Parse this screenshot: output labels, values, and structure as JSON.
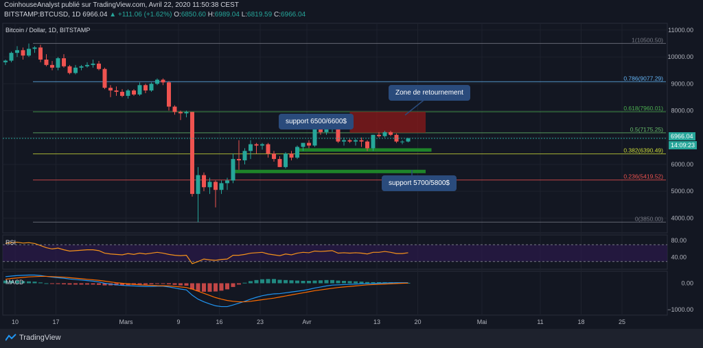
{
  "header": {
    "publisher_line": "CoinhouseAnalyst publié sur TradingView.com, Avril 22, 2020 11:50:38 CEST",
    "symbol": "BITSTAMP:BTCUSD, 1D",
    "last": "6966.04",
    "change": "▲ +111.06 (+1.62%)",
    "o_label": "O:",
    "o": "6850.60",
    "h_label": "H:",
    "h": "6989.04",
    "l_label": "L:",
    "l": "6819.59",
    "c_label": "C:",
    "c": "6966.04"
  },
  "chart_title": "Bitcoin / Dollar, 1D, BITSTAMP",
  "footer": {
    "brand": "TradingView"
  },
  "colors": {
    "up": "#26a69a",
    "down": "#ef5350",
    "bg": "#131722",
    "zone": "#8b1a1a",
    "support": "#1f8a2a",
    "callout": "#2a4b7c"
  },
  "chart_data": {
    "type": "candlestick",
    "x_ticks": [
      {
        "label": "10",
        "day": 0
      },
      {
        "label": "17",
        "day": 7
      },
      {
        "label": "Mars",
        "day": 19
      },
      {
        "label": "9",
        "day": 28
      },
      {
        "label": "16",
        "day": 35
      },
      {
        "label": "23",
        "day": 42
      },
      {
        "label": "Avr",
        "day": 50
      },
      {
        "label": "13",
        "day": 62
      },
      {
        "label": "20",
        "day": 69
      },
      {
        "label": "Mai",
        "day": 80
      },
      {
        "label": "11",
        "day": 90
      },
      {
        "label": "18",
        "day": 97
      },
      {
        "label": "25",
        "day": 104
      }
    ],
    "y_axis": {
      "min": 3500,
      "max": 11200,
      "ticks": [
        "11000.00",
        "10000.00",
        "9000.00",
        "8000.00",
        "7000.00",
        "6000.00",
        "5000.00",
        "4000.00"
      ]
    },
    "candles": [
      [
        9800,
        9900,
        9700,
        9860
      ],
      [
        9860,
        10200,
        9800,
        10150
      ],
      [
        10150,
        10400,
        10000,
        10250
      ],
      [
        10250,
        10350,
        9900,
        10050
      ],
      [
        10050,
        10500,
        10000,
        10300
      ],
      [
        10300,
        10400,
        10150,
        10350
      ],
      [
        10350,
        10450,
        9800,
        9900
      ],
      [
        9900,
        10100,
        9650,
        9700
      ],
      [
        9700,
        9850,
        9500,
        9600
      ],
      [
        9600,
        10000,
        9500,
        9950
      ],
      [
        9950,
        10100,
        9600,
        9650
      ],
      [
        9650,
        9700,
        9350,
        9400
      ],
      [
        9400,
        9700,
        9350,
        9600
      ],
      [
        9600,
        9700,
        9500,
        9650
      ],
      [
        9650,
        9800,
        9600,
        9700
      ],
      [
        9700,
        9900,
        9600,
        9750
      ],
      [
        9750,
        9850,
        9500,
        9550
      ],
      [
        9550,
        9600,
        8800,
        8850
      ],
      [
        8850,
        8950,
        8500,
        8750
      ],
      [
        8750,
        8900,
        8550,
        8700
      ],
      [
        8700,
        8800,
        8500,
        8550
      ],
      [
        8550,
        8800,
        8450,
        8750
      ],
      [
        8750,
        8800,
        8550,
        8600
      ],
      [
        8600,
        9050,
        8550,
        8950
      ],
      [
        8950,
        9000,
        8650,
        8750
      ],
      [
        8750,
        9050,
        8700,
        9000
      ],
      [
        9000,
        9200,
        8950,
        9150
      ],
      [
        9150,
        9200,
        8950,
        9050
      ],
      [
        9050,
        9100,
        8000,
        8150
      ],
      [
        8150,
        8200,
        7850,
        7950
      ],
      [
        7950,
        8000,
        7650,
        7900
      ],
      [
        7900,
        8000,
        7750,
        7950
      ],
      [
        7950,
        7950,
        4800,
        4900
      ],
      [
        4900,
        5900,
        3850,
        5600
      ],
      [
        5600,
        5700,
        5000,
        5150
      ],
      [
        5150,
        5500,
        4900,
        5350
      ],
      [
        5350,
        5400,
        4400,
        5050
      ],
      [
        5050,
        5400,
        4900,
        5300
      ],
      [
        5300,
        5500,
        5050,
        5400
      ],
      [
        5400,
        6400,
        5300,
        6200
      ],
      [
        6200,
        6900,
        5800,
        6150
      ],
      [
        6150,
        6600,
        6000,
        6500
      ],
      [
        6500,
        6900,
        6200,
        6750
      ],
      [
        6750,
        6800,
        6400,
        6700
      ],
      [
        6700,
        6800,
        6550,
        6750
      ],
      [
        6750,
        6800,
        6250,
        6400
      ],
      [
        6400,
        6500,
        6100,
        6200
      ],
      [
        6200,
        6300,
        5900,
        5900
      ],
      [
        5900,
        6450,
        5850,
        6400
      ],
      [
        6400,
        6500,
        6150,
        6250
      ],
      [
        6250,
        6700,
        6200,
        6650
      ],
      [
        6650,
        6800,
        6500,
        6800
      ],
      [
        6800,
        6900,
        6600,
        6700
      ],
      [
        6700,
        7350,
        6650,
        7300
      ],
      [
        7300,
        7400,
        7100,
        7200
      ],
      [
        7200,
        7350,
        7100,
        7300
      ],
      [
        7300,
        7450,
        7200,
        7350
      ],
      [
        7350,
        7350,
        6800,
        6850
      ],
      [
        6850,
        7000,
        6700,
        6900
      ],
      [
        6900,
        6950,
        6800,
        6850
      ],
      [
        6850,
        6950,
        6700,
        6900
      ],
      [
        6900,
        7000,
        6650,
        6850
      ],
      [
        6850,
        6900,
        6500,
        6600
      ],
      [
        6600,
        7100,
        6500,
        7100
      ],
      [
        7100,
        7200,
        7000,
        7050
      ],
      [
        7050,
        7250,
        7000,
        7200
      ],
      [
        7200,
        7250,
        7050,
        7100
      ],
      [
        7100,
        7150,
        6800,
        6850
      ],
      [
        6850,
        6900,
        6750,
        6850
      ],
      [
        6850,
        6990,
        6820,
        6966
      ]
    ],
    "fib_levels": [
      {
        "label": "1(10500.50)",
        "value": 10500.5,
        "color": "#787b86"
      },
      {
        "label": "0.786(9077.29)",
        "value": 9077.29,
        "color": "#64b5f6"
      },
      {
        "label": "0.618(7960.01)",
        "value": 7960.01,
        "color": "#4caf50"
      },
      {
        "label": "0.5(7175.25)",
        "value": 7175.25,
        "color": "#66bb6a"
      },
      {
        "label": "0.382(6390.49)",
        "value": 6390.49,
        "color": "#cddc39"
      },
      {
        "label": "0.236(5419.52)",
        "value": 5419.52,
        "color": "#ef5350"
      },
      {
        "label": "0(3850.00)",
        "value": 3850.0,
        "color": "#787b86"
      }
    ],
    "zones": [
      {
        "label": "Zone de retournement",
        "x0": 59,
        "x1": 72,
        "y0": 7175,
        "y1": 7960,
        "color": "#8b1a1a"
      },
      {
        "label": "support 6500/6600$",
        "x0": 50,
        "x1": 73,
        "y0": 6500,
        "y1": 6600,
        "color": "#1f8a2a"
      },
      {
        "label": "support 5700/5800$",
        "x0": 39,
        "x1": 72,
        "y0": 5700,
        "y1": 5800,
        "color": "#1f8a2a"
      }
    ],
    "current_price": "6966.04",
    "countdown": "14:09:23",
    "rsi": {
      "label": "RSI",
      "ticks": [
        "80.00",
        "40.00"
      ],
      "ylim": [
        15,
        90
      ],
      "bands": [
        70,
        30
      ],
      "values": [
        73,
        75,
        76,
        74,
        75,
        73,
        68,
        63,
        60,
        62,
        58,
        55,
        56,
        57,
        58,
        58,
        56,
        50,
        48,
        47,
        46,
        49,
        47,
        50,
        48,
        50,
        52,
        50,
        47,
        45,
        44,
        45,
        25,
        30,
        36,
        34,
        33,
        35,
        36,
        45,
        45,
        47,
        50,
        51,
        52,
        48,
        46,
        44,
        48,
        46,
        50,
        52,
        51,
        55,
        54,
        55,
        56,
        50,
        51,
        50,
        51,
        50,
        48,
        52,
        52,
        54,
        52,
        49,
        49,
        51
      ]
    },
    "macd": {
      "label": "MACD",
      "ticks": [
        "0.00",
        "−1000.00"
      ],
      "ylim": [
        -1150,
        400
      ],
      "macd_line": [
        250,
        270,
        290,
        300,
        310,
        310,
        290,
        260,
        230,
        210,
        190,
        160,
        140,
        120,
        100,
        80,
        50,
        0,
        -30,
        -60,
        -80,
        -90,
        -100,
        -110,
        -120,
        -120,
        -110,
        -110,
        -140,
        -180,
        -220,
        -250,
        -450,
        -600,
        -700,
        -780,
        -850,
        -880,
        -880,
        -820,
        -750,
        -680,
        -600,
        -530,
        -470,
        -430,
        -400,
        -390,
        -360,
        -330,
        -300,
        -270,
        -230,
        -180,
        -140,
        -100,
        -70,
        -60,
        -50,
        -40,
        -30,
        -20,
        -15,
        -10,
        0,
        10,
        15,
        20,
        20,
        20
      ],
      "signal_line": [
        150,
        180,
        200,
        220,
        240,
        250,
        260,
        260,
        250,
        240,
        230,
        210,
        190,
        170,
        150,
        130,
        110,
        80,
        50,
        20,
        0,
        -20,
        -40,
        -60,
        -70,
        -80,
        -90,
        -95,
        -100,
        -120,
        -140,
        -160,
        -220,
        -300,
        -380,
        -460,
        -540,
        -600,
        -650,
        -680,
        -700,
        -700,
        -680,
        -650,
        -620,
        -590,
        -560,
        -520,
        -480,
        -440,
        -400,
        -360,
        -320,
        -280,
        -250,
        -220,
        -190,
        -160,
        -140,
        -120,
        -100,
        -80,
        -60,
        -50,
        -40,
        -30,
        -20,
        -10,
        0,
        5
      ]
    }
  }
}
